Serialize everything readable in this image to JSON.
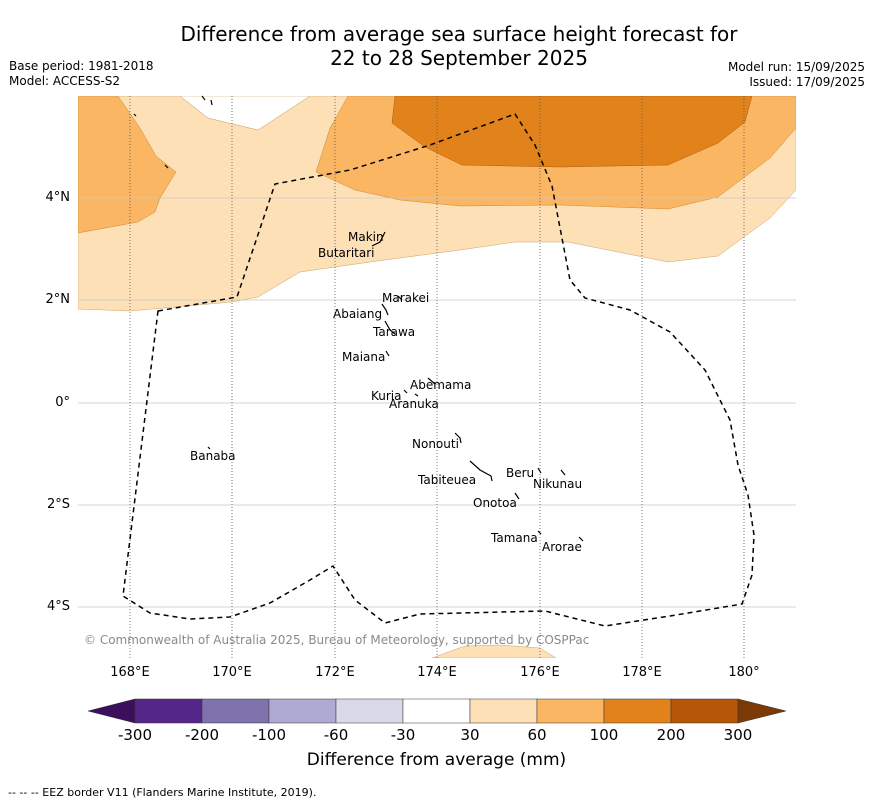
{
  "title_line1": "Difference from average sea surface height forecast for",
  "title_line2": "22 to 28 September 2025",
  "meta_left": [
    "Base period: 1981-2018",
    "Model: ACCESS-S2"
  ],
  "meta_right": [
    "Model run: 15/09/2025",
    "Issued: 17/09/2025"
  ],
  "lat_ticks": [
    "4°N",
    "2°N",
    "0°",
    "2°S",
    "4°S"
  ],
  "lon_ticks": [
    "168°E",
    "170°E",
    "172°E",
    "174°E",
    "176°E",
    "178°E",
    "180°"
  ],
  "places": [
    "Makin",
    "Butaritari",
    "Marakei",
    "Abaiang",
    "Tarawa",
    "Maiana",
    "Abemama",
    "Kuria",
    "Aranuka",
    "Nonouti",
    "Banaba",
    "Beru",
    "Nikunau",
    "Tabiteuea",
    "Onotoa",
    "Tamana",
    "Arorae"
  ],
  "copyright": "© Commonwealth of Australia 2025, Bureau of Meteorology, supported by COSPPac",
  "colorbar": {
    "title": "Difference from average (mm)",
    "labels": [
      "-300",
      "-200",
      "-100",
      "-60",
      "-30",
      "30",
      "60",
      "100",
      "200",
      "300"
    ],
    "colors": [
      "#3c0f5c",
      "#54268a",
      "#7f72ad",
      "#aeaad2",
      "#d9d9ea",
      "#ffffff",
      "#fde0b6",
      "#fab662",
      "#e2821b",
      "#b65707",
      "#7b3a05"
    ]
  },
  "footer": "--  --  -- EEZ border V11 (Flanders Marine Institute, 2019).",
  "chart_data": {
    "type": "heatmap",
    "title": "Difference from average sea surface height forecast for 22 to 28 September 2025",
    "xlabel": "",
    "ylabel": "",
    "x_ticks": [
      "168°E",
      "170°E",
      "172°E",
      "174°E",
      "176°E",
      "178°E",
      "180°"
    ],
    "y_ticks": [
      "4°N",
      "2°N",
      "0°",
      "2°S",
      "4°S"
    ],
    "xlim": [
      167,
      181
    ],
    "ylim": [
      -5,
      6
    ],
    "legend_title": "Difference from average (mm)",
    "bins_mm": [
      -300,
      -200,
      -100,
      -60,
      -30,
      30,
      60,
      100,
      200,
      300
    ],
    "regions": [
      {
        "bin": "30 to 60",
        "area": "north of ~1.8°N"
      },
      {
        "bin": "60 to 100",
        "area": "north of ~4°N, strongest at west and centre"
      },
      {
        "bin": "100 to 200",
        "area": "north of ~4.7°N between 173°E and 179°E"
      },
      {
        "bin": "-30 to 30",
        "area": "remainder of domain"
      }
    ]
  }
}
